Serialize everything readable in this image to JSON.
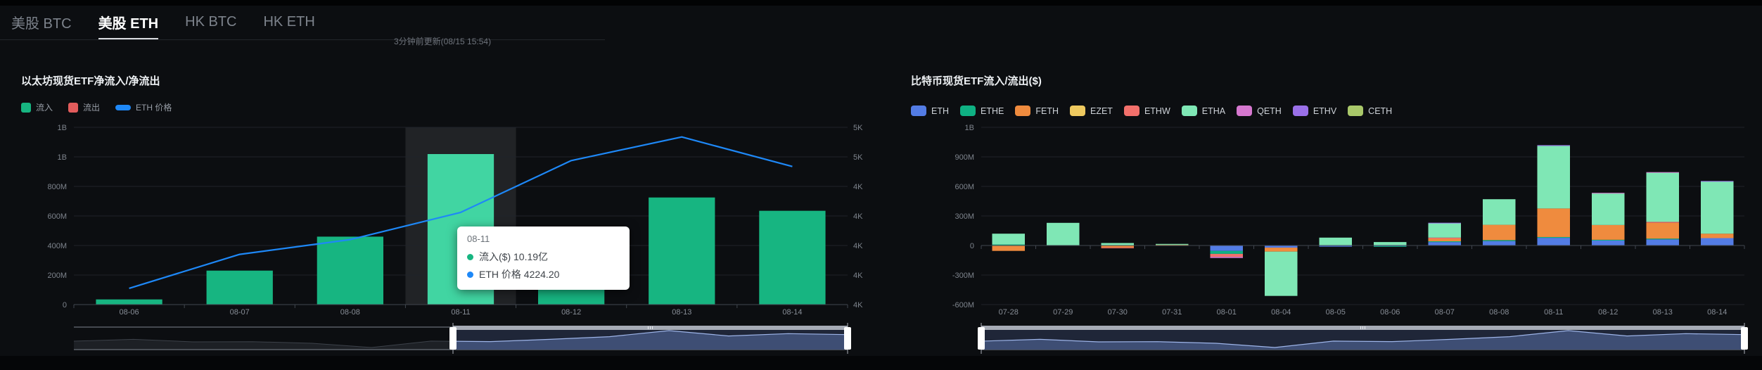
{
  "tabs": [
    {
      "label": "美股 BTC",
      "active": false
    },
    {
      "label": "美股 ETH",
      "active": true
    },
    {
      "label": "HK BTC",
      "active": false
    },
    {
      "label": "HK ETH",
      "active": false
    }
  ],
  "update_note": "3分钟前更新(08/15 15:54)",
  "left_chart": {
    "title": "以太坊现货ETF净流入/净流出",
    "legend": [
      {
        "label": "流入",
        "color": "#17b581",
        "shape": "rect"
      },
      {
        "label": "流出",
        "color": "#e25c5c",
        "shape": "rect"
      },
      {
        "label": "ETH 价格",
        "color": "#1e88f7",
        "shape": "pill"
      }
    ]
  },
  "right_chart": {
    "title": "比特币现货ETF流入/流出($)"
  },
  "tooltip": {
    "title": "08-11",
    "items": [
      {
        "label": "流入($)",
        "value": "10.19亿",
        "color": "#17b581"
      },
      {
        "label": "ETH 价格",
        "value": "4224.20",
        "color": "#1e88f7"
      }
    ]
  },
  "chart_data": [
    {
      "type": "bar",
      "title": "以太坊现货ETF净流入/净流出",
      "unit": "$M",
      "categories": [
        "08-06",
        "08-07",
        "08-08",
        "08-11",
        "08-12",
        "08-13",
        "08-14"
      ],
      "series": [
        {
          "name": "流入",
          "type": "bar",
          "color": "#17b581",
          "values": [
            35,
            230,
            460,
            1019,
            520,
            725,
            635
          ]
        },
        {
          "name": "流出",
          "type": "bar",
          "color": "#e25c5c",
          "values": [
            0,
            0,
            0,
            0,
            0,
            0,
            0
          ]
        },
        {
          "name": "ETH 价格",
          "type": "line",
          "axis": "right",
          "color": "#1e88f7",
          "values": [
            3710,
            3940,
            4040,
            4224.2,
            4575,
            4735,
            4535
          ]
        }
      ],
      "ylim": [
        0,
        1200
      ],
      "yticks": [
        "0",
        "200M",
        "400M",
        "600M",
        "800M",
        "1B",
        "1B"
      ],
      "ylim_right": [
        3600,
        4800
      ],
      "yticks_right": [
        "4K",
        "4K",
        "4K",
        "4K",
        "4K",
        "5K",
        "5K"
      ],
      "highlight_index": 3,
      "bar_highlight_color": "#41d5a2",
      "grid": true,
      "legend_position": "top",
      "datazoom": {
        "start_pct": 49,
        "end_pct": 100
      }
    },
    {
      "type": "bar",
      "title": "比特币现货ETF流入/流出($)",
      "unit": "$M",
      "stacked": true,
      "categories": [
        "07-28",
        "07-29",
        "07-30",
        "07-31",
        "08-01",
        "08-04",
        "08-05",
        "08-06",
        "08-07",
        "08-08",
        "08-11",
        "08-12",
        "08-13",
        "08-14"
      ],
      "series": [
        {
          "name": "ETH",
          "color": "#537ce5",
          "values": [
            0,
            0,
            0,
            3,
            -55,
            -22,
            -12,
            -6,
            35,
            45,
            78,
            50,
            62,
            75
          ]
        },
        {
          "name": "ETHE",
          "color": "#0fb183",
          "values": [
            10,
            0,
            0,
            0,
            -30,
            0,
            0,
            -6,
            8,
            10,
            8,
            8,
            8,
            0
          ]
        },
        {
          "name": "FETH",
          "color": "#ef8b3e",
          "values": [
            -55,
            0,
            -20,
            3,
            0,
            -40,
            0,
            0,
            25,
            155,
            290,
            150,
            160,
            45
          ]
        },
        {
          "name": "EZET",
          "color": "#eec95f",
          "values": [
            0,
            0,
            0,
            2,
            0,
            0,
            0,
            0,
            0,
            0,
            0,
            0,
            0,
            0
          ]
        },
        {
          "name": "ETHW",
          "color": "#f2706b",
          "values": [
            0,
            0,
            -8,
            0,
            -30,
            0,
            0,
            0,
            12,
            0,
            0,
            0,
            10,
            0
          ]
        },
        {
          "name": "ETHA",
          "color": "#7fe7b5",
          "values": [
            110,
            230,
            25,
            8,
            0,
            -450,
            80,
            35,
            145,
            260,
            635,
            320,
            500,
            530
          ]
        },
        {
          "name": "QETH",
          "color": "#d678cf",
          "values": [
            0,
            0,
            0,
            0,
            -12,
            0,
            0,
            0,
            0,
            0,
            0,
            7,
            5,
            0
          ]
        },
        {
          "name": "ETHV",
          "color": "#9a70e8",
          "values": [
            0,
            0,
            0,
            0,
            0,
            0,
            0,
            0,
            6,
            0,
            8,
            0,
            0,
            5
          ]
        },
        {
          "name": "CETH",
          "color": "#a9c86a",
          "values": [
            0,
            0,
            0,
            0,
            0,
            0,
            0,
            0,
            0,
            0,
            0,
            0,
            0,
            0
          ]
        }
      ],
      "ylim": [
        -600,
        1200
      ],
      "yticks": [
        "-600M",
        "-300M",
        "0",
        "300M",
        "600M",
        "900M",
        "1B"
      ],
      "grid": true,
      "legend_position": "top",
      "datazoom": {
        "start_pct": 0,
        "end_pct": 100
      }
    }
  ],
  "colors": {
    "background": "#0c0e11",
    "accent_green": "#17b581",
    "accent_blue": "#1e88f7",
    "gridline": "#202329",
    "axis": "#41464e"
  }
}
